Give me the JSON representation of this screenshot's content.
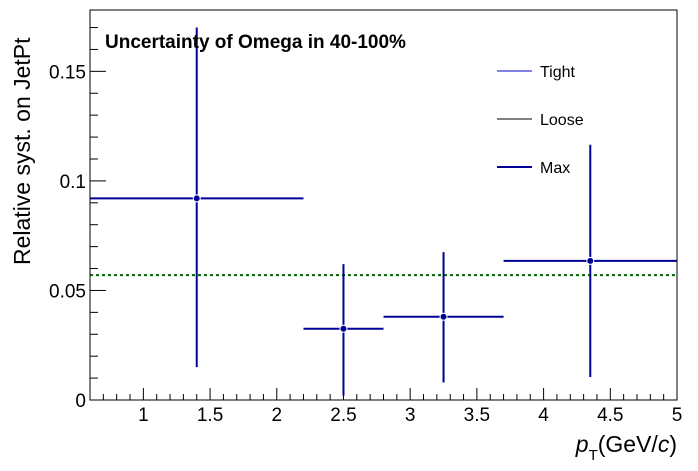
{
  "chart_data": {
    "type": "scatter",
    "title": "Uncertainty of Omega in 40-100%",
    "ylabel": "Relative syst. on JetPt",
    "xlabel": {
      "p": "p",
      "sub": "T",
      "pre": "(GeV/",
      "c": "c",
      "post": ")"
    },
    "xlim": [
      0.6,
      5.0
    ],
    "ylim": [
      0,
      0.178
    ],
    "x_ticks": [
      1,
      1.5,
      2,
      2.5,
      3,
      3.5,
      4,
      4.5,
      5
    ],
    "x_tick_labels": [
      "1",
      "1.5",
      "2",
      "2.5",
      "3",
      "3.5",
      "4",
      "4.5",
      "5"
    ],
    "y_ticks": [
      0,
      0.05,
      0.1,
      0.15
    ],
    "y_tick_labels": [
      "0",
      "0.05",
      "0.1",
      "0.15"
    ],
    "legend": {
      "placement": "top-right",
      "entries": [
        {
          "label": "Tight",
          "color": "#0000cc",
          "width": 1
        },
        {
          "label": "Loose",
          "color": "#000000",
          "width": 1
        },
        {
          "label": "Max",
          "color": "#000099",
          "width": 2
        }
      ]
    },
    "series": [
      {
        "color": "#000099",
        "points": [
          {
            "x": 1.4,
            "y": 0.092,
            "xlo": 0.6,
            "xhi": 2.2,
            "ylo": 0.015,
            "yhi": 0.17
          },
          {
            "x": 2.5,
            "y": 0.0325,
            "xlo": 2.2,
            "xhi": 2.8,
            "ylo": 0.002,
            "yhi": 0.062
          },
          {
            "x": 3.25,
            "y": 0.038,
            "xlo": 2.8,
            "xhi": 3.7,
            "ylo": 0.008,
            "yhi": 0.0675
          },
          {
            "x": 4.35,
            "y": 0.0635,
            "xlo": 3.7,
            "xhi": 5.0,
            "ylo": 0.0105,
            "yhi": 0.1165
          }
        ]
      }
    ],
    "reference_line": {
      "y": 0.057,
      "color": "#006600",
      "style": "dotted"
    }
  }
}
